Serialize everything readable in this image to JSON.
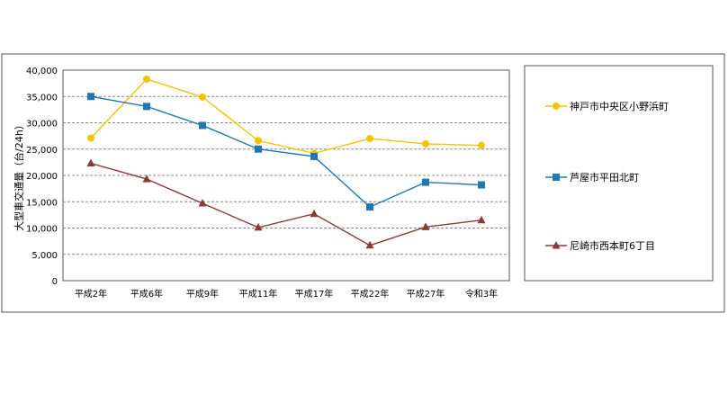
{
  "chart_data": {
    "type": "line",
    "title": "",
    "xlabel": "",
    "ylabel": "大型車交通量（台/24h）",
    "ylim": [
      0,
      40000
    ],
    "yticks": [
      "0",
      "5,000",
      "10,000",
      "15,000",
      "20,000",
      "25,000",
      "30,000",
      "35,000",
      "40,000"
    ],
    "categories": [
      "平成2年",
      "平成6年",
      "平成9年",
      "平成11年",
      "平成17年",
      "平成22年",
      "平成27年",
      "令和3年"
    ],
    "grid": true,
    "legend": "right",
    "series": [
      {
        "name": "神戸市中央区小野浜町",
        "color": "#f5c400",
        "marker": "circle",
        "values": [
          27100,
          38300,
          34900,
          26600,
          24200,
          27000,
          26000,
          25700
        ]
      },
      {
        "name": "芦屋市平田北町",
        "color": "#1f77b4",
        "marker": "square",
        "values": [
          35000,
          33100,
          29500,
          25000,
          23600,
          14000,
          18700,
          18200
        ]
      },
      {
        "name": "尼崎市西本町6丁目",
        "color": "#8b3a3a",
        "marker": "triangle",
        "values": [
          22300,
          19300,
          14700,
          10100,
          12700,
          6700,
          10200,
          11500
        ]
      }
    ]
  }
}
